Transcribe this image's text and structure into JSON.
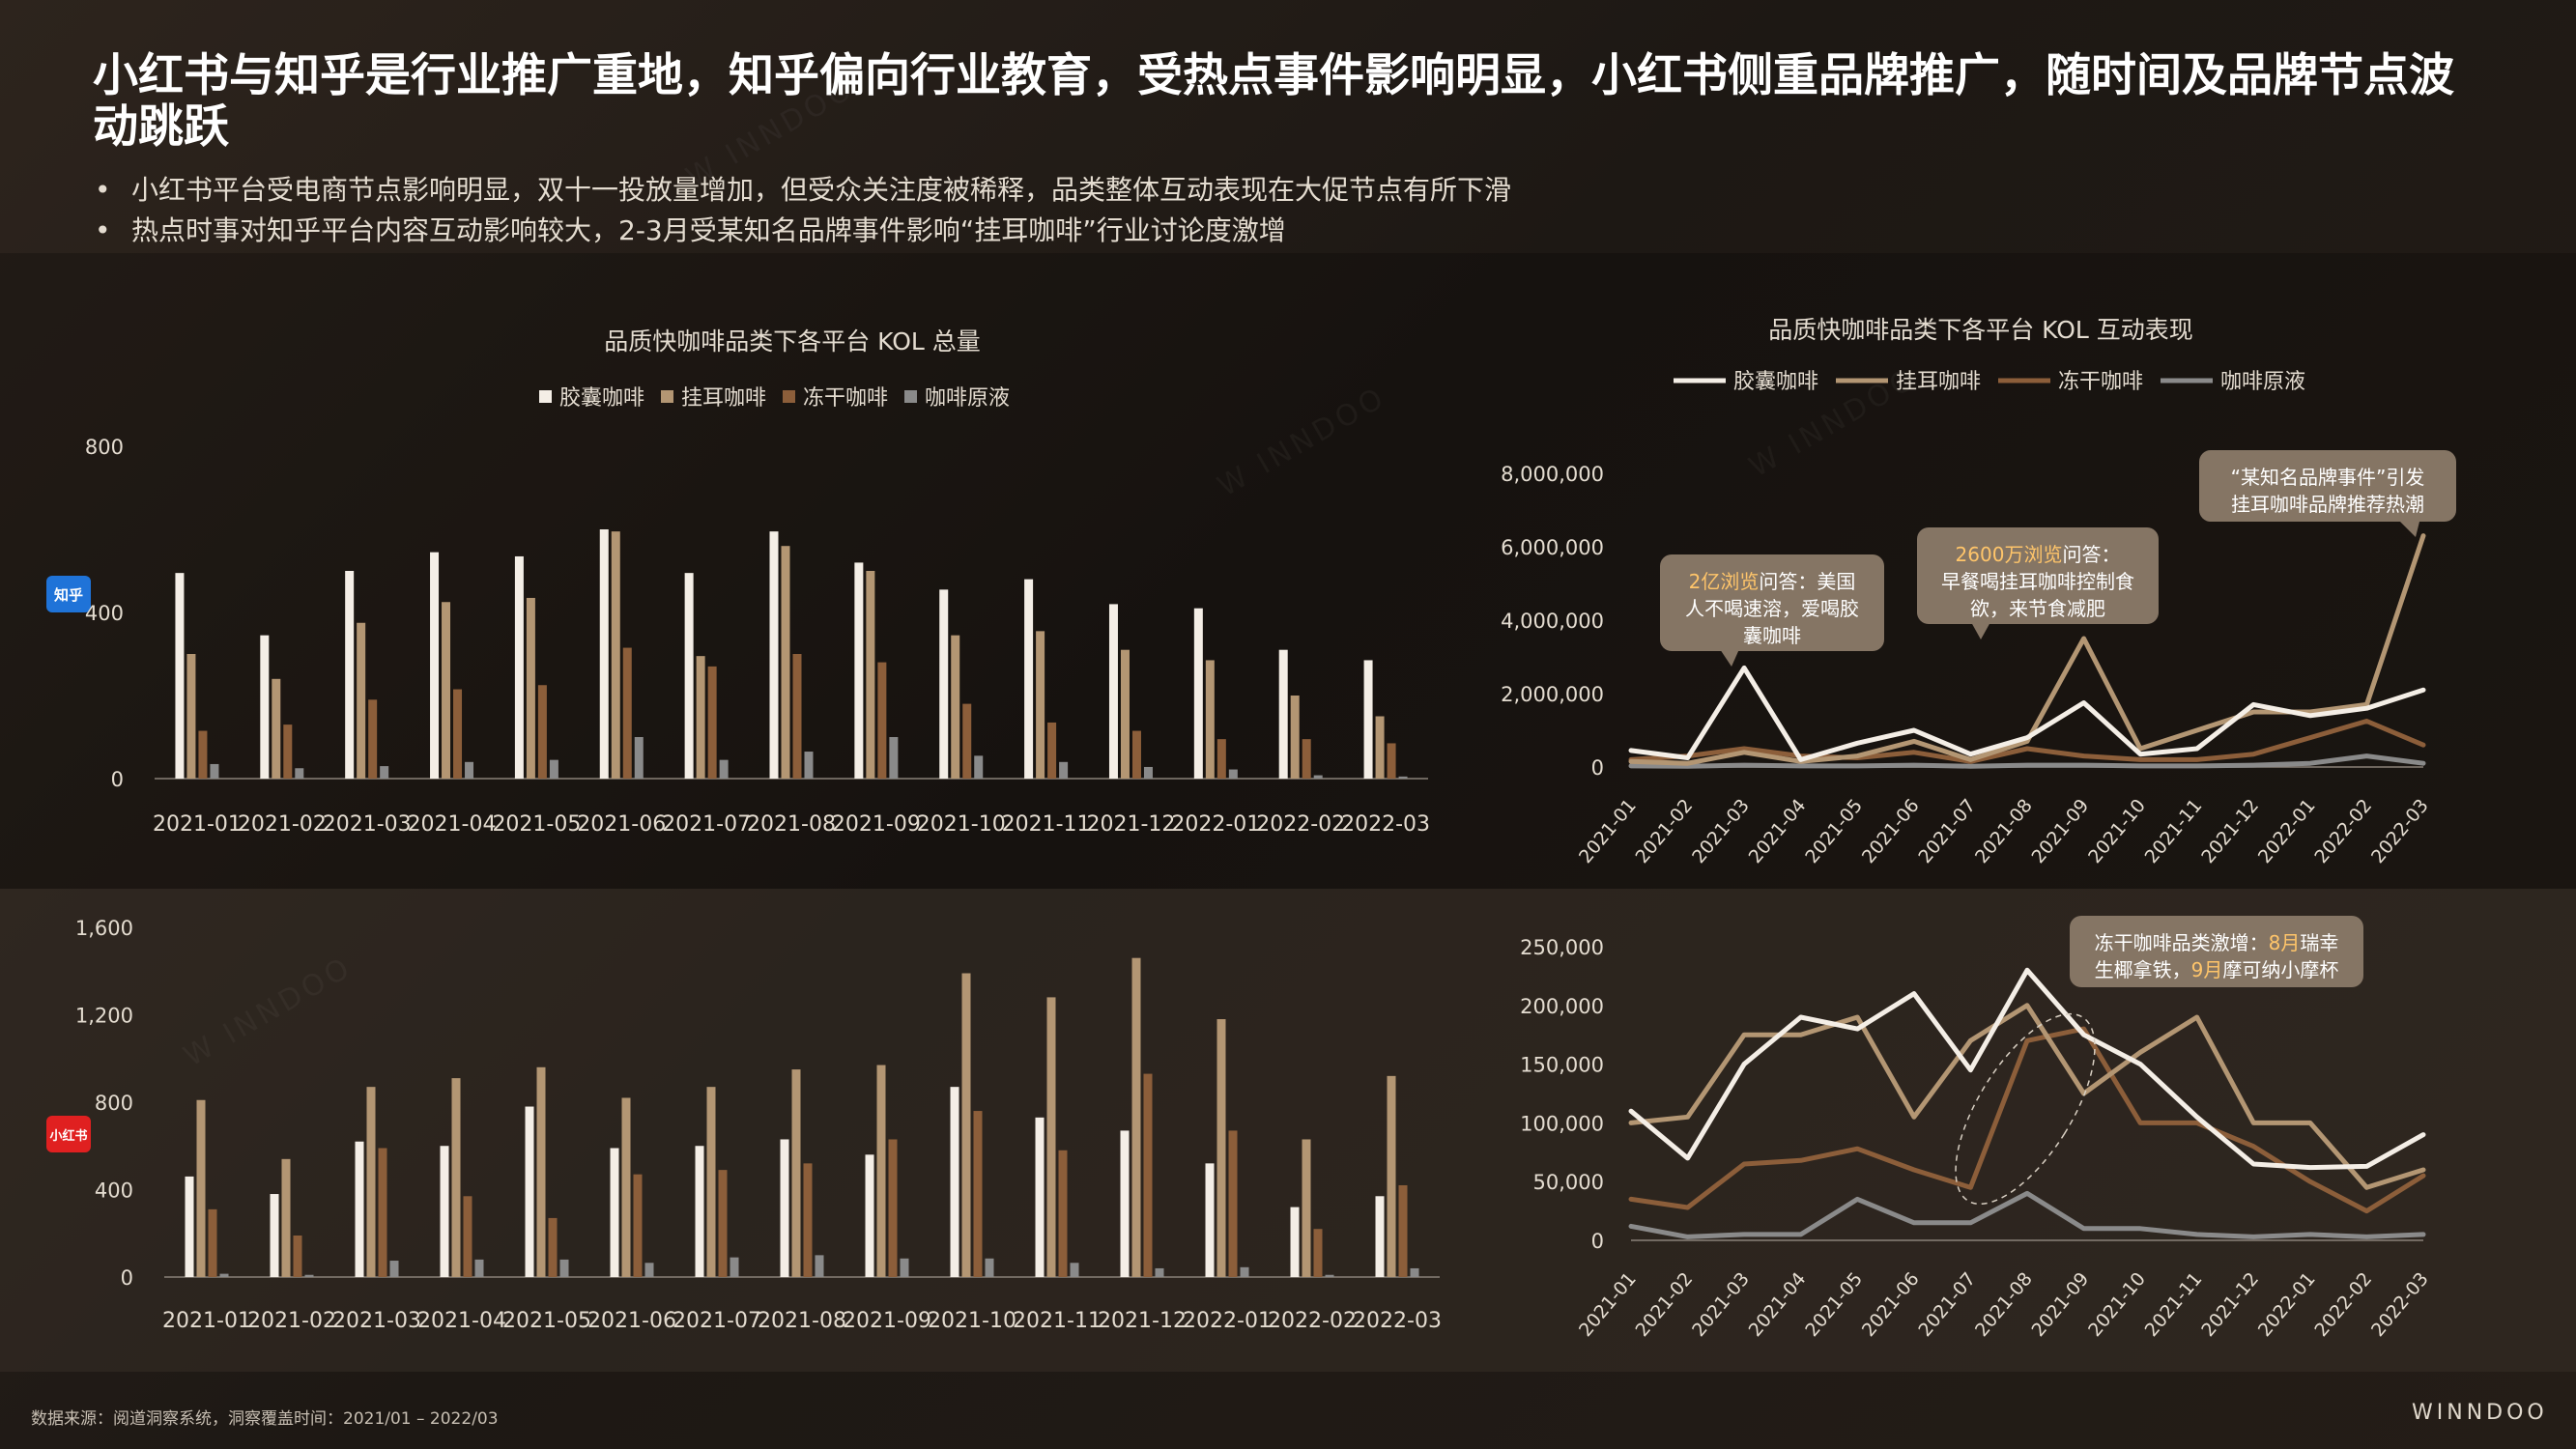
{
  "title": "小红书与知乎是行业推广重地，知乎偏向行业教育，受热点事件影响明显，小红书侧重品牌推广，随时间及品牌节点波动跳跃",
  "bullets": [
    "小红书平台受电商节点影响明显，双十一投放量增加，但受众关注度被稀释，品类整体互动表现在大促节点有所下滑",
    "热点时事对知乎平台内容互动影响较大，2-3月受某知名品牌事件影响“挂耳咖啡”行业讨论度激增"
  ],
  "source": "数据来源：阅道洞察系统，洞察覆盖时间：2021/01 – 2022/03",
  "logo": "WINNDOO",
  "platforms": {
    "zhihu": "知乎",
    "xhs": "小红书"
  },
  "colors": {
    "capsule": "#f4eee6",
    "drip": "#b39673",
    "freeze": "#8c5e3a",
    "liquid": "#8a8a8a",
    "callout": "#857564",
    "highlight": "#ffc56a"
  },
  "chart_data": [
    {
      "type": "bar",
      "title": "品质快咖啡品类下各平台 KOL 总量",
      "platform": "知乎",
      "categories": [
        "2021-01",
        "2021-02",
        "2021-03",
        "2021-04",
        "2021-05",
        "2021-06",
        "2021-07",
        "2021-08",
        "2021-09",
        "2021-10",
        "2021-11",
        "2021-12",
        "2022-01",
        "2022-02",
        "2022-03"
      ],
      "ylim": [
        0,
        800
      ],
      "yticks": [
        "0",
        "400",
        "800"
      ],
      "legend": "top",
      "series": [
        {
          "name": "胶囊咖啡",
          "values": [
            495,
            345,
            500,
            545,
            535,
            600,
            495,
            595,
            520,
            455,
            480,
            420,
            410,
            310,
            285
          ]
        },
        {
          "name": "挂耳咖啡",
          "values": [
            300,
            240,
            375,
            425,
            435,
            595,
            295,
            560,
            500,
            345,
            355,
            310,
            285,
            200,
            150
          ]
        },
        {
          "name": "冻干咖啡",
          "values": [
            115,
            130,
            190,
            215,
            225,
            315,
            270,
            300,
            280,
            180,
            135,
            115,
            95,
            95,
            85
          ]
        },
        {
          "name": "咖啡原液",
          "values": [
            35,
            25,
            30,
            40,
            45,
            100,
            45,
            65,
            100,
            55,
            40,
            28,
            22,
            8,
            5
          ]
        }
      ]
    },
    {
      "type": "line",
      "title": "品质快咖啡品类下各平台 KOL 互动表现",
      "platform": "知乎",
      "categories": [
        "2021-01",
        "2021-02",
        "2021-03",
        "2021-04",
        "2021-05",
        "2021-06",
        "2021-07",
        "2021-08",
        "2021-09",
        "2021-10",
        "2021-11",
        "2021-12",
        "2022-01",
        "2022-02",
        "2022-03"
      ],
      "ylim": [
        0,
        8000000
      ],
      "yticks": [
        "0",
        "2,000,000",
        "4,000,000",
        "6,000,000",
        "8,000,000"
      ],
      "legend": "top",
      "series": [
        {
          "name": "胶囊咖啡",
          "values": [
            450000,
            250000,
            2700000,
            200000,
            650000,
            1000000,
            350000,
            800000,
            1750000,
            350000,
            500000,
            1700000,
            1400000,
            1600000,
            2100000
          ]
        },
        {
          "name": "挂耳咖啡",
          "values": [
            150000,
            100000,
            400000,
            150000,
            300000,
            700000,
            200000,
            700000,
            3500000,
            500000,
            1000000,
            1500000,
            1500000,
            1700000,
            6300000
          ]
        },
        {
          "name": "冻干咖啡",
          "values": [
            200000,
            300000,
            500000,
            300000,
            250000,
            400000,
            150000,
            500000,
            300000,
            200000,
            200000,
            350000,
            800000,
            1250000,
            600000
          ]
        },
        {
          "name": "咖啡原液",
          "values": [
            30000,
            20000,
            50000,
            30000,
            30000,
            50000,
            20000,
            50000,
            50000,
            30000,
            30000,
            50000,
            100000,
            300000,
            100000
          ]
        }
      ],
      "annotations": [
        {
          "highlight": "2亿浏览",
          "text": "问答：美国人不喝速溶，爱喝胶囊咖啡"
        },
        {
          "highlight": "2600万浏览",
          "text": "问答：早餐喝挂耳咖啡控制食欲，来节食减肥"
        },
        {
          "highlight": "",
          "text": "“某知名品牌事件”引发挂耳咖啡品牌推荐热潮"
        }
      ]
    },
    {
      "type": "bar",
      "platform": "小红书",
      "categories": [
        "2021-01",
        "2021-02",
        "2021-03",
        "2021-04",
        "2021-05",
        "2021-06",
        "2021-07",
        "2021-08",
        "2021-09",
        "2021-10",
        "2021-11",
        "2021-12",
        "2022-01",
        "2022-02",
        "2022-03"
      ],
      "ylim": [
        0,
        1600
      ],
      "yticks": [
        "0",
        "400",
        "800",
        "1,200",
        "1,600"
      ],
      "series": [
        {
          "name": "胶囊咖啡",
          "values": [
            460,
            380,
            620,
            600,
            780,
            590,
            600,
            630,
            560,
            870,
            730,
            670,
            520,
            320,
            370
          ]
        },
        {
          "name": "挂耳咖啡",
          "values": [
            810,
            540,
            870,
            910,
            960,
            820,
            870,
            950,
            970,
            1390,
            1280,
            1460,
            1180,
            630,
            920
          ]
        },
        {
          "name": "冻干咖啡",
          "values": [
            310,
            190,
            590,
            370,
            270,
            470,
            490,
            520,
            630,
            760,
            580,
            930,
            670,
            220,
            420
          ]
        },
        {
          "name": "咖啡原液",
          "values": [
            15,
            10,
            75,
            80,
            80,
            65,
            90,
            100,
            85,
            85,
            65,
            40,
            45,
            10,
            40
          ]
        }
      ]
    },
    {
      "type": "line",
      "platform": "小红书",
      "categories": [
        "2021-01",
        "2021-02",
        "2021-03",
        "2021-04",
        "2021-05",
        "2021-06",
        "2021-07",
        "2021-08",
        "2021-09",
        "2021-10",
        "2021-11",
        "2021-12",
        "2022-01",
        "2022-02",
        "2022-03"
      ],
      "ylim": [
        0,
        250000
      ],
      "yticks": [
        "0",
        "50,000",
        "100,000",
        "150,000",
        "200,000",
        "250,000"
      ],
      "series": [
        {
          "name": "胶囊咖啡",
          "values": [
            110000,
            70000,
            150000,
            190000,
            180000,
            210000,
            145000,
            230000,
            175000,
            150000,
            105000,
            65000,
            62000,
            63000,
            90000
          ]
        },
        {
          "name": "挂耳咖啡",
          "values": [
            100000,
            105000,
            175000,
            175000,
            190000,
            105000,
            170000,
            200000,
            125000,
            160000,
            190000,
            100000,
            100000,
            45000,
            60000
          ]
        },
        {
          "name": "冻干咖啡",
          "values": [
            35000,
            28000,
            65000,
            68000,
            78000,
            60000,
            45000,
            170000,
            180000,
            100000,
            100000,
            80000,
            50000,
            25000,
            55000
          ]
        },
        {
          "name": "咖啡原液",
          "values": [
            12000,
            3000,
            5000,
            5000,
            35000,
            15000,
            15000,
            40000,
            10000,
            10000,
            5000,
            3000,
            5000,
            3000,
            5000
          ]
        }
      ],
      "annotations": [
        {
          "segments": [
            {
              "text": "冻干咖啡品类激增：",
              "hl": false
            },
            {
              "text": "8月",
              "hl": true
            },
            {
              "text": "瑞幸生椰拿铁，",
              "hl": false
            },
            {
              "text": "9月",
              "hl": true
            },
            {
              "text": "摩可纳小摩杯",
              "hl": false
            }
          ]
        }
      ]
    }
  ]
}
